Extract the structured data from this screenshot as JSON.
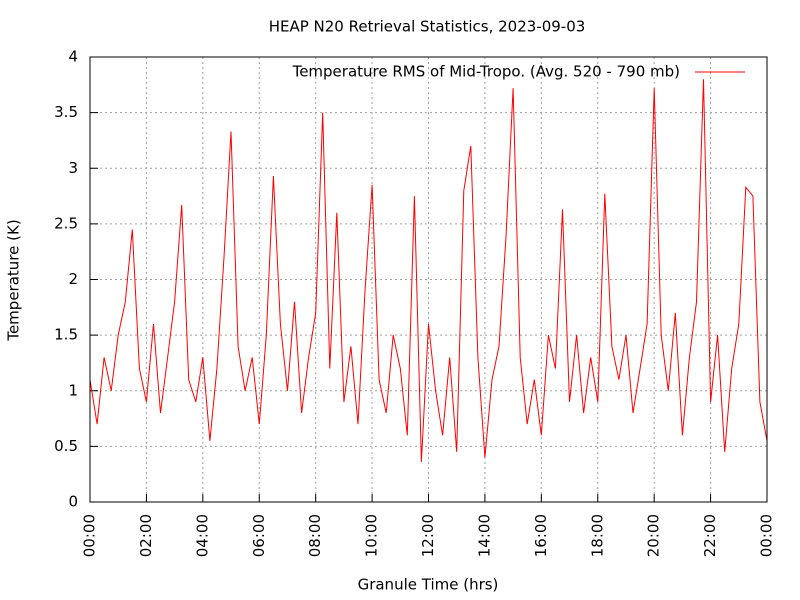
{
  "chart_data": {
    "type": "line",
    "title": "HEAP N20 Retrieval Statistics, 2023-09-03",
    "x_label": "Granule Time (hrs)",
    "y_label": "Temperature (K)",
    "x": [
      0,
      0.25,
      0.5,
      0.75,
      1,
      1.25,
      1.5,
      1.75,
      2,
      2.25,
      2.5,
      2.75,
      3,
      3.25,
      3.5,
      3.75,
      4,
      4.25,
      4.5,
      4.75,
      5,
      5.25,
      5.5,
      5.75,
      6,
      6.25,
      6.5,
      6.75,
      7,
      7.25,
      7.5,
      7.75,
      8,
      8.25,
      8.5,
      8.75,
      9,
      9.25,
      9.5,
      9.75,
      10,
      10.25,
      10.5,
      10.75,
      11,
      11.25,
      11.5,
      11.75,
      12,
      12.25,
      12.5,
      12.75,
      13,
      13.25,
      13.5,
      13.75,
      14,
      14.25,
      14.5,
      14.75,
      15,
      15.25,
      15.5,
      15.75,
      16,
      16.25,
      16.5,
      16.75,
      17,
      17.25,
      17.5,
      17.75,
      18,
      18.25,
      18.5,
      18.75,
      19,
      19.25,
      19.5,
      19.75,
      20,
      20.25,
      20.5,
      20.75,
      21,
      21.25,
      21.5,
      21.75,
      22,
      22.25,
      22.5,
      22.75,
      23,
      23.25,
      23.5,
      23.75,
      24
    ],
    "series": [
      {
        "name": "Temperature RMS of Mid-Tropo. (Avg. 520 - 790 mb)",
        "color": "#ff0000",
        "values": [
          1.1,
          0.7,
          1.3,
          1.0,
          1.5,
          1.8,
          2.45,
          1.2,
          0.9,
          1.6,
          0.8,
          1.3,
          1.8,
          2.67,
          1.1,
          0.9,
          1.3,
          0.55,
          1.2,
          2.2,
          3.33,
          1.4,
          1.0,
          1.3,
          0.7,
          1.5,
          2.93,
          1.6,
          1.0,
          1.8,
          0.8,
          1.3,
          1.7,
          3.5,
          1.2,
          2.6,
          0.9,
          1.4,
          0.7,
          1.9,
          2.85,
          1.1,
          0.8,
          1.5,
          1.2,
          0.6,
          2.75,
          0.36,
          1.6,
          1.0,
          0.6,
          1.3,
          0.45,
          2.8,
          3.2,
          1.3,
          0.4,
          1.1,
          1.4,
          2.4,
          3.72,
          1.3,
          0.7,
          1.1,
          0.6,
          1.5,
          1.2,
          2.63,
          0.9,
          1.5,
          0.8,
          1.3,
          0.9,
          2.77,
          1.4,
          1.1,
          1.5,
          0.8,
          1.2,
          1.6,
          3.72,
          1.5,
          1.0,
          1.7,
          0.6,
          1.3,
          1.8,
          3.8,
          0.9,
          1.5,
          0.45,
          1.2,
          1.6,
          2.83,
          2.75,
          0.9,
          0.55
        ]
      }
    ],
    "xlim": [
      0,
      24
    ],
    "xticks": [
      {
        "value": 0,
        "label": "00:00"
      },
      {
        "value": 2,
        "label": "02:00"
      },
      {
        "value": 4,
        "label": "04:00"
      },
      {
        "value": 6,
        "label": "06:00"
      },
      {
        "value": 8,
        "label": "08:00"
      },
      {
        "value": 10,
        "label": "10:00"
      },
      {
        "value": 12,
        "label": "12:00"
      },
      {
        "value": 14,
        "label": "14:00"
      },
      {
        "value": 16,
        "label": "16:00"
      },
      {
        "value": 18,
        "label": "18:00"
      },
      {
        "value": 20,
        "label": "20:00"
      },
      {
        "value": 22,
        "label": "22:00"
      },
      {
        "value": 24,
        "label": "00:00"
      }
    ],
    "ylim": [
      0,
      4
    ],
    "yticks": [
      0,
      0.5,
      1,
      1.5,
      2,
      2.5,
      3,
      3.5,
      4
    ],
    "grid": true,
    "legend": "top right"
  }
}
